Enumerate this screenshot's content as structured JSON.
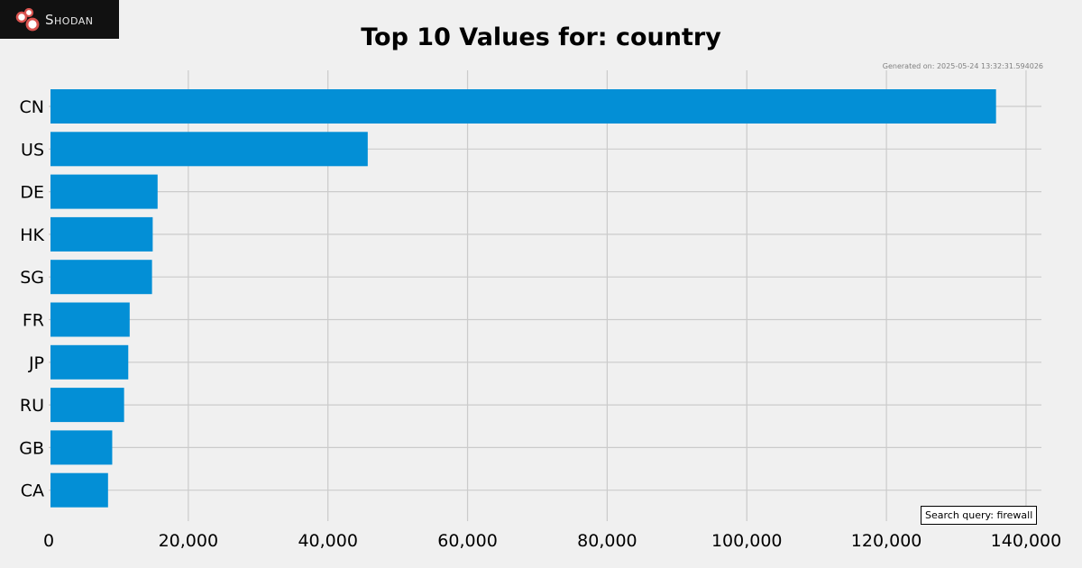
{
  "brand": {
    "name": "Shodan",
    "logo_icon": "shodan-logo-icon"
  },
  "generated": "Generated on: 2025-05-24 13:32:31.594026",
  "search_query": "Search query: firewall",
  "colors": {
    "bar": "#038fd6",
    "grid": "#cbcbcb",
    "background": "#f0f0f0"
  },
  "chart_data": {
    "type": "bar",
    "orientation": "horizontal",
    "title": "Top 10 Values for: country",
    "categories": [
      "CN",
      "US",
      "DE",
      "HK",
      "SG",
      "FR",
      "JP",
      "RU",
      "GB",
      "CA"
    ],
    "values": [
      135700,
      45700,
      15600,
      14900,
      14800,
      11600,
      11400,
      10800,
      9100,
      8500
    ],
    "xlim": [
      0,
      142000
    ],
    "xticks": [
      0,
      20000,
      40000,
      60000,
      80000,
      100000,
      120000,
      140000
    ],
    "xtick_labels": [
      "0",
      "20,000",
      "40,000",
      "60,000",
      "80,000",
      "100,000",
      "120,000",
      "140,000"
    ],
    "grid": true
  }
}
